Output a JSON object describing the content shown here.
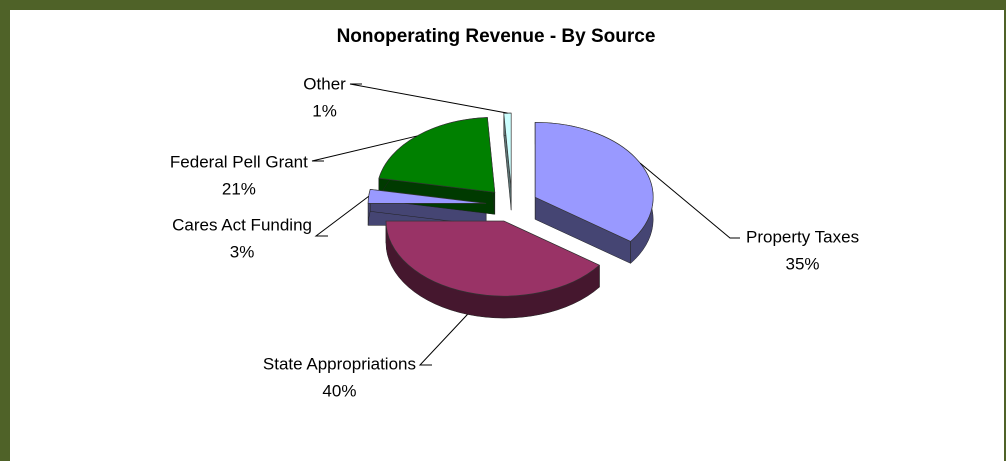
{
  "chart_data": {
    "type": "pie",
    "title": "Nonoperating Revenue - By Source",
    "categories": [
      "Property Taxes",
      "State Appropriations",
      "Cares Act Funding",
      "Federal Pell Grant",
      "Other"
    ],
    "values": [
      35,
      40,
      3,
      21,
      1
    ],
    "value_labels": [
      "35%",
      "40%",
      "3%",
      "21%",
      "1%"
    ],
    "colors": [
      "#9999ff",
      "#993366",
      "#9999ff",
      "#008000",
      "#ccffff"
    ]
  }
}
